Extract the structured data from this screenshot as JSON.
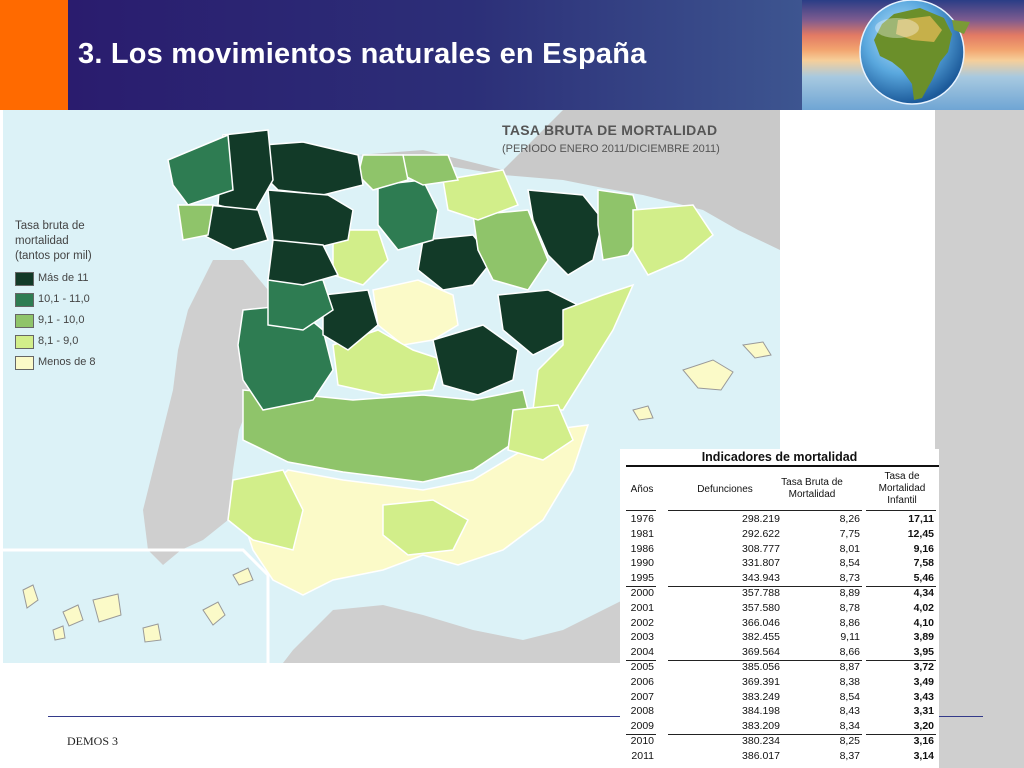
{
  "slide": {
    "title": "3. Los movimientos naturales en España",
    "footer": "DEMOS 3"
  },
  "map": {
    "title": "TASA BRUTA DE MORTALIDAD",
    "subtitle": "(PERIODO ENERO 2011/DICIEMBRE 2011)",
    "legend": {
      "title_lines": [
        "Tasa bruta de",
        "mortalidad",
        "(tantos por mil)"
      ],
      "items": [
        {
          "label": "Más de 11",
          "color": "#123a28"
        },
        {
          "label": "10,1 - 11,0",
          "color": "#2e7c52"
        },
        {
          "label": "9,1 - 10,0",
          "color": "#8fc46a"
        },
        {
          "label": "8,1 - 9,0",
          "color": "#d2ee8a"
        },
        {
          "label": "Menos de 8",
          "color": "#fbfac8"
        }
      ]
    }
  },
  "table": {
    "caption": "Indicadores de mortalidad",
    "headers": [
      "Años",
      "Defunciones",
      "Tasa Bruta de Mortalidad",
      "Tasa de Mortalidad Infantil"
    ],
    "rows": [
      [
        "1976",
        "298.219",
        "8,26",
        "17,11"
      ],
      [
        "1981",
        "292.622",
        "7,75",
        "12,45"
      ],
      [
        "1986",
        "308.777",
        "8,01",
        "9,16"
      ],
      [
        "1990",
        "331.807",
        "8,54",
        "7,58"
      ],
      [
        "1995",
        "343.943",
        "8,73",
        "5,46"
      ],
      [
        "2000",
        "357.788",
        "8,89",
        "4,34"
      ],
      [
        "2001",
        "357.580",
        "8,78",
        "4,02"
      ],
      [
        "2002",
        "366.046",
        "8,86",
        "4,10"
      ],
      [
        "2003",
        "382.455",
        "9,11",
        "3,89"
      ],
      [
        "2004",
        "369.564",
        "8,66",
        "3,95"
      ],
      [
        "2005",
        "385.056",
        "8,87",
        "3,72"
      ],
      [
        "2006",
        "369.391",
        "8,38",
        "3,49"
      ],
      [
        "2007",
        "383.249",
        "8,54",
        "3,43"
      ],
      [
        "2008",
        "384.198",
        "8,43",
        "3,31"
      ],
      [
        "2009",
        "383.209",
        "8,34",
        "3,20"
      ],
      [
        "2010",
        "380.234",
        "8,25",
        "3,16"
      ],
      [
        "2011",
        "386.017",
        "8,37",
        "3,14"
      ]
    ]
  }
}
